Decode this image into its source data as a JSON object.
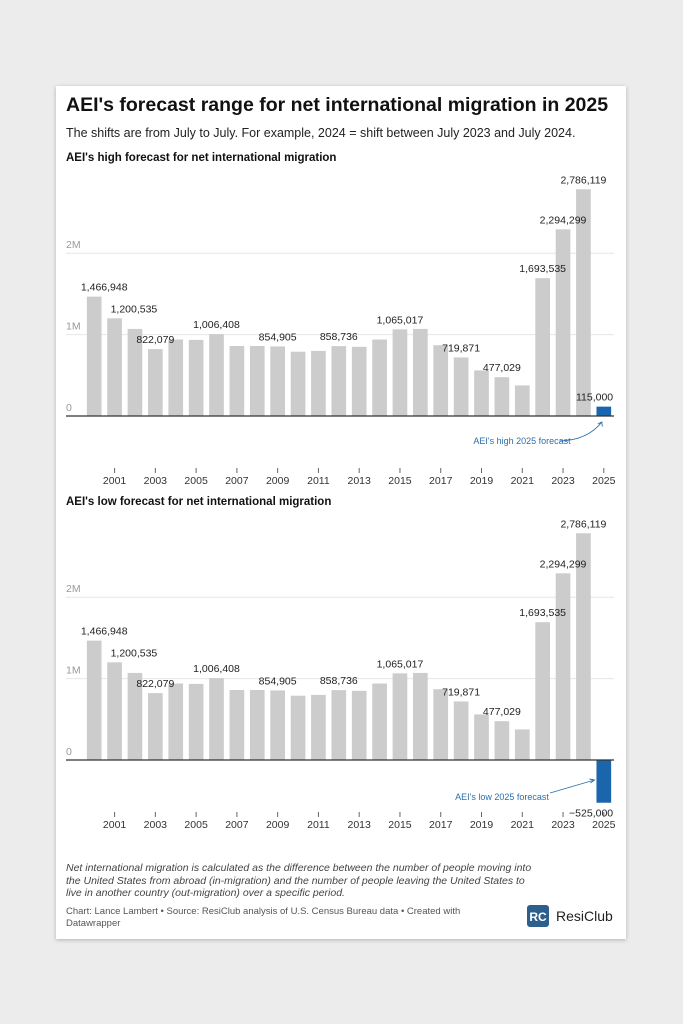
{
  "header": {
    "title": "AEI's forecast range for net international migration in 2025",
    "subtitle": "The shifts are from July to July. For example, 2024 = shift between July 2023 and July 2024."
  },
  "colors": {
    "bar": "#cccccc",
    "highlight": "#1a65ac",
    "annotation": "#2a6fad",
    "axis": "#333333",
    "grid": "#e6e6e6"
  },
  "chart_data": [
    {
      "type": "bar",
      "title": "AEI's high forecast for net international migration",
      "categories": [
        2000,
        2001,
        2002,
        2003,
        2004,
        2005,
        2006,
        2007,
        2008,
        2009,
        2010,
        2011,
        2012,
        2013,
        2014,
        2015,
        2016,
        2017,
        2018,
        2019,
        2020,
        2021,
        2022,
        2023,
        2024,
        2025
      ],
      "values": [
        1466948,
        1200535,
        1070000,
        822079,
        940000,
        935000,
        1006408,
        860000,
        860000,
        854905,
        790000,
        800000,
        858736,
        850000,
        940000,
        1065017,
        1070000,
        870000,
        719871,
        560000,
        477029,
        376000,
        1693535,
        2294299,
        2786119,
        115000
      ],
      "labels": [
        "1,466,948",
        "1,200,535",
        "",
        "822,079",
        "",
        "",
        "1,006,408",
        "",
        "",
        "854,905",
        "",
        "",
        "858,736",
        "",
        "",
        "1,065,017",
        "",
        "",
        "719,871",
        "",
        "477,029",
        "",
        "1,693,535",
        "2,294,299",
        "2,786,119",
        "115,000"
      ],
      "highlight_index": 25,
      "x_ticks": [
        "2001",
        "2003",
        "2005",
        "2007",
        "2009",
        "2011",
        "2013",
        "2015",
        "2017",
        "2019",
        "2021",
        "2023",
        "2025"
      ],
      "y_ticks": [
        {
          "v": 0,
          "label": "0"
        },
        {
          "v": 1000000,
          "label": "1M"
        },
        {
          "v": 2000000,
          "label": "2M"
        }
      ],
      "ylim": [
        -700000,
        2900000
      ],
      "annotation": "AEI's high 2025 forecast"
    },
    {
      "type": "bar",
      "title": "AEI's low forecast for net international migration",
      "categories": [
        2000,
        2001,
        2002,
        2003,
        2004,
        2005,
        2006,
        2007,
        2008,
        2009,
        2010,
        2011,
        2012,
        2013,
        2014,
        2015,
        2016,
        2017,
        2018,
        2019,
        2020,
        2021,
        2022,
        2023,
        2024,
        2025
      ],
      "values": [
        1466948,
        1200535,
        1070000,
        822079,
        940000,
        935000,
        1006408,
        860000,
        860000,
        854905,
        790000,
        800000,
        858736,
        850000,
        940000,
        1065017,
        1070000,
        870000,
        719871,
        560000,
        477029,
        376000,
        1693535,
        2294299,
        2786119,
        -525000
      ],
      "labels": [
        "1,466,948",
        "1,200,535",
        "",
        "822,079",
        "",
        "",
        "1,006,408",
        "",
        "",
        "854,905",
        "",
        "",
        "858,736",
        "",
        "",
        "1,065,017",
        "",
        "",
        "719,871",
        "",
        "477,029",
        "",
        "1,693,535",
        "2,294,299",
        "2,786,119",
        "−525,000"
      ],
      "highlight_index": 25,
      "x_ticks": [
        "2001",
        "2003",
        "2005",
        "2007",
        "2009",
        "2011",
        "2013",
        "2015",
        "2017",
        "2019",
        "2021",
        "2023",
        "2025"
      ],
      "y_ticks": [
        {
          "v": 0,
          "label": "0"
        },
        {
          "v": 1000000,
          "label": "1M"
        },
        {
          "v": 2000000,
          "label": "2M"
        }
      ],
      "ylim": [
        -700000,
        2900000
      ],
      "annotation": "AEI's low 2025 forecast"
    }
  ],
  "footer": {
    "notes": "Net international migration is calculated as the difference between the number of people moving into the United States from abroad (in-migration) and the number of people leaving the United States to live in another country (out-migration) over a specific period.",
    "credit": "Chart: Lance Lambert • Source: ResiClub analysis of U.S. Census Bureau data • Created with Datawrapper",
    "logo_text": "ResiClub"
  }
}
